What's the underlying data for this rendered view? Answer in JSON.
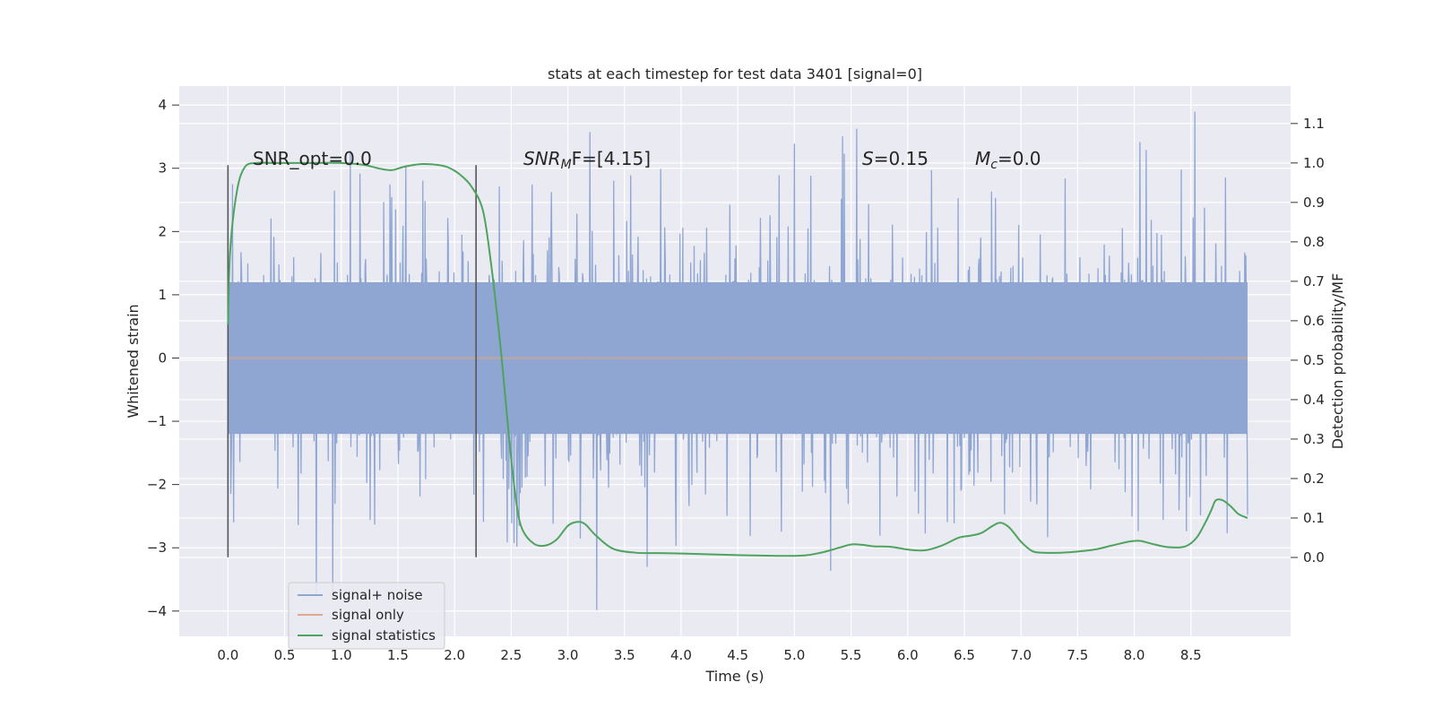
{
  "chart_data": {
    "type": "line",
    "title": "stats at each timestep for test data 3401 [signal=0]",
    "xlabel": "Time (s)",
    "ylabel": "Whitened strain",
    "y2label": "Detection probability/MF",
    "xlim": [
      -0.43,
      9.38
    ],
    "ylim": [
      -4.4,
      4.3
    ],
    "y2lim": [
      -0.2,
      1.195
    ],
    "xticks": [
      "0.0",
      "0.5",
      "1.0",
      "1.5",
      "2.0",
      "2.5",
      "3.0",
      "3.5",
      "4.0",
      "4.5",
      "5.0",
      "5.5",
      "6.0",
      "6.5",
      "7.0",
      "7.5",
      "8.0",
      "8.5"
    ],
    "yticks": [
      "4",
      "3",
      "2",
      "1",
      "0",
      "−1",
      "−2",
      "−3",
      "−4"
    ],
    "y2ticks": [
      "1.1",
      "1.0",
      "0.9",
      "0.8",
      "0.7",
      "0.6",
      "0.5",
      "0.4",
      "0.3",
      "0.2",
      "0.1",
      "0.0"
    ],
    "grid": true,
    "legend_position": "lower-left",
    "annotations": {
      "snr_opt": "SNR_opt=0.0",
      "snr_mf_label": "SNR",
      "snr_mf_sub": "M",
      "snr_mf_rest": "F=[4.15]",
      "s_label": "S",
      "s_value": "=0.15",
      "mc_label": "M",
      "mc_sub": "c",
      "mc_value": "=0.0"
    },
    "vlines": [
      0.0,
      2.19
    ],
    "vline_range": [
      -3.15,
      3.05
    ],
    "noise": {
      "x_start": 0.0,
      "x_end": 9.0,
      "envelope": 1.2,
      "min": -4.0,
      "max": 3.9
    },
    "series": [
      {
        "name": "signal+ noise",
        "color": "#8fa6d3"
      },
      {
        "name": "signal only",
        "color": "#e0a890",
        "x": [
          0.0,
          9.0
        ],
        "y": [
          0.0,
          0.0
        ]
      },
      {
        "name": "signal statistics",
        "color": "#4ea35e",
        "axis": "right",
        "x": [
          0.0,
          0.02,
          0.08,
          0.15,
          0.25,
          0.4,
          0.7,
          1.0,
          1.2,
          1.35,
          1.45,
          1.55,
          1.7,
          1.85,
          1.95,
          2.05,
          2.15,
          2.25,
          2.32,
          2.4,
          2.45,
          2.5,
          2.55,
          2.6,
          2.7,
          2.8,
          2.9,
          3.0,
          3.08,
          3.15,
          3.25,
          3.4,
          3.6,
          3.8,
          4.0,
          4.5,
          5.0,
          5.2,
          5.4,
          5.5,
          5.6,
          5.7,
          5.85,
          6.0,
          6.15,
          6.3,
          6.45,
          6.55,
          6.65,
          6.75,
          6.82,
          6.9,
          7.0,
          7.1,
          7.2,
          7.35,
          7.5,
          7.65,
          7.8,
          7.95,
          8.05,
          8.15,
          8.3,
          8.45,
          8.55,
          8.63,
          8.68,
          8.72,
          8.78,
          8.85,
          8.92,
          9.0
        ],
        "y": [
          0.59,
          0.78,
          0.93,
          0.99,
          1.0,
          1.0,
          1.0,
          1.0,
          0.995,
          0.985,
          0.982,
          0.99,
          0.997,
          0.995,
          0.988,
          0.97,
          0.94,
          0.88,
          0.75,
          0.55,
          0.4,
          0.25,
          0.13,
          0.07,
          0.035,
          0.03,
          0.045,
          0.08,
          0.09,
          0.085,
          0.055,
          0.022,
          0.012,
          0.011,
          0.01,
          0.006,
          0.004,
          0.01,
          0.025,
          0.033,
          0.032,
          0.028,
          0.027,
          0.02,
          0.018,
          0.03,
          0.05,
          0.055,
          0.062,
          0.08,
          0.088,
          0.075,
          0.04,
          0.016,
          0.012,
          0.012,
          0.015,
          0.02,
          0.03,
          0.04,
          0.042,
          0.035,
          0.026,
          0.028,
          0.05,
          0.09,
          0.12,
          0.145,
          0.145,
          0.13,
          0.11,
          0.1
        ]
      }
    ]
  }
}
